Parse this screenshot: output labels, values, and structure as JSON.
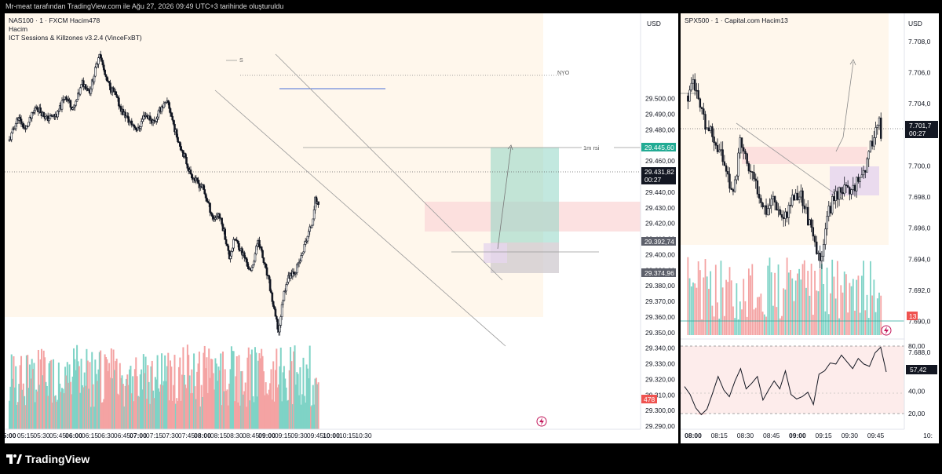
{
  "header": {
    "caption": "Mr-meat tarafından TradingView.com ile Ağu 27, 2026 09:49 UTC+3 tarihinde oluşturuldu"
  },
  "footer": {
    "brand": "TradingView"
  },
  "left_pane": {
    "symbol_line": "NAS100 · 1 · FXCM  Hacim478",
    "line2": "Hacim",
    "line3": "ICT Sessions & Killzones v3.2.4 (VinceFxBT)",
    "currency": "USD",
    "annotations": {
      "session_label": "NYO",
      "rsi_label": "1m rsi",
      "swing_label": "S"
    },
    "price_tags": {
      "rsi_level": "29.445,60",
      "last_price": "29.431,82",
      "countdown": "00:27",
      "level_a": "29.392,74",
      "level_b": "29.374,96",
      "volume": "478"
    }
  },
  "right_pane": {
    "symbol_line": "SPX500 · 1 · Capital.com  Hacim13",
    "currency": "USD",
    "price_tags": {
      "last_price": "7.701,7",
      "countdown": "00:27",
      "volume": "13",
      "rsi_value": "57,42"
    }
  },
  "chart_data": [
    {
      "type": "candlestick",
      "symbol": "NAS100",
      "timeframe": "1",
      "y_ticks": [
        "29.500,00",
        "29.490,00",
        "29.480,00",
        "29.470,00",
        "29.460,00",
        "29.450,00",
        "29.440,00",
        "29.430,00",
        "29.420,00",
        "29.410,00",
        "29.400,00",
        "29.390,00",
        "29.380,00",
        "29.370,00",
        "29.360,00",
        "29.350,00",
        "29.340,00",
        "29.330,00",
        "29.320,00",
        "29.310,00",
        "29.300,00",
        "29.290,00"
      ],
      "x_ticks": [
        "5:00",
        "05:15",
        "05:30",
        "05:45",
        "06:00",
        "06:15",
        "06:30",
        "06:45",
        "07:00",
        "07:15",
        "07:30",
        "07:45",
        "08:00",
        "08:15",
        "08:30",
        "08:45",
        "09:00",
        "09:15",
        "09:30",
        "09:45",
        "10:00",
        "10:15",
        "10:30"
      ],
      "ylim": [
        29287,
        29531
      ],
      "price_path": [
        [
          "05:00",
          29473
        ],
        [
          "05:08",
          29488
        ],
        [
          "05:15",
          29480
        ],
        [
          "05:25",
          29495
        ],
        [
          "05:35",
          29487
        ],
        [
          "05:45",
          29490
        ],
        [
          "05:52",
          29502
        ],
        [
          "06:00",
          29493
        ],
        [
          "06:08",
          29510
        ],
        [
          "06:15",
          29505
        ],
        [
          "06:20",
          29518
        ],
        [
          "06:24",
          29530
        ],
        [
          "06:30",
          29512
        ],
        [
          "06:38",
          29503
        ],
        [
          "06:45",
          29492
        ],
        [
          "06:52",
          29485
        ],
        [
          "07:00",
          29480
        ],
        [
          "07:06",
          29490
        ],
        [
          "07:15",
          29485
        ],
        [
          "07:22",
          29495
        ],
        [
          "07:28",
          29497
        ],
        [
          "07:35",
          29478
        ],
        [
          "07:42",
          29465
        ],
        [
          "07:48",
          29453
        ],
        [
          "07:55",
          29446
        ],
        [
          "08:00",
          29443
        ],
        [
          "08:05",
          29433
        ],
        [
          "08:10",
          29423
        ],
        [
          "08:15",
          29426
        ],
        [
          "08:20",
          29415
        ],
        [
          "08:25",
          29398
        ],
        [
          "08:30",
          29410
        ],
        [
          "08:35",
          29404
        ],
        [
          "08:40",
          29397
        ],
        [
          "08:45",
          29388
        ],
        [
          "08:52",
          29410
        ],
        [
          "08:57",
          29395
        ],
        [
          "09:02",
          29382
        ],
        [
          "09:07",
          29363
        ],
        [
          "09:11",
          29350
        ],
        [
          "09:15",
          29372
        ],
        [
          "09:18",
          29382
        ],
        [
          "09:22",
          29388
        ],
        [
          "09:27",
          29390
        ],
        [
          "09:32",
          29398
        ],
        [
          "09:37",
          29410
        ],
        [
          "09:42",
          29420
        ],
        [
          "09:45",
          29435
        ],
        [
          "09:48",
          29432
        ]
      ],
      "levels": {
        "rsi_level": 29445.6,
        "last_price": 29431.82,
        "level_a": 29392.74,
        "level_b": 29374.96
      },
      "volume_label": "478"
    },
    {
      "type": "candlestick",
      "symbol": "SPX500",
      "timeframe": "1",
      "y_ticks": [
        "7.708,0",
        "7.706,0",
        "7.704,0",
        "7.702,0",
        "7.700,0",
        "7.698,0",
        "7.696,0",
        "7.694,0",
        "7.692,0",
        "7.690,0",
        "7.688,0"
      ],
      "x_ticks": [
        "08:00",
        "08:15",
        "08:30",
        "08:45",
        "09:00",
        "09:15",
        "09:30",
        "09:45",
        "10:"
      ],
      "ylim": [
        7686.6,
        7709.3
      ],
      "price_path": [
        [
          "07:57",
          7704.5
        ],
        [
          "08:00",
          7705.6
        ],
        [
          "08:03",
          7704.0
        ],
        [
          "08:07",
          7702.5
        ],
        [
          "08:12",
          7701.8
        ],
        [
          "08:18",
          7700.2
        ],
        [
          "08:23",
          7698.0
        ],
        [
          "08:27",
          7701.6
        ],
        [
          "08:32",
          7699.8
        ],
        [
          "08:37",
          7698.5
        ],
        [
          "08:42",
          7697.2
        ],
        [
          "08:46",
          7698.0
        ],
        [
          "08:52",
          7696.6
        ],
        [
          "08:57",
          7697.9
        ],
        [
          "09:02",
          7698.2
        ],
        [
          "09:06",
          7696.6
        ],
        [
          "09:10",
          7694.8
        ],
        [
          "09:13",
          7693.7
        ],
        [
          "09:16",
          7696.2
        ],
        [
          "09:20",
          7697.8
        ],
        [
          "09:25",
          7698.6
        ],
        [
          "09:30",
          7698.3
        ],
        [
          "09:35",
          7699.2
        ],
        [
          "09:40",
          7700.1
        ],
        [
          "09:44",
          7702.2
        ],
        [
          "09:47",
          7702.8
        ],
        [
          "09:48",
          7701.7
        ]
      ],
      "last_price": 7701.7,
      "volume_label": "13"
    },
    {
      "type": "line",
      "name": "RSI",
      "y_ticks": [
        "80,00",
        "60,00",
        "40,00",
        "20,00"
      ],
      "ylim": [
        14,
        86
      ],
      "levels": [
        80,
        20
      ],
      "values": [
        44,
        37,
        25,
        19,
        24,
        38,
        53,
        41,
        35,
        49,
        60,
        42,
        47,
        53,
        32,
        41,
        49,
        42,
        58,
        37,
        33,
        35,
        39,
        28,
        55,
        58,
        65,
        64,
        72,
        66,
        60,
        69,
        64,
        62,
        74,
        79,
        57
      ],
      "last": 57.42
    }
  ]
}
